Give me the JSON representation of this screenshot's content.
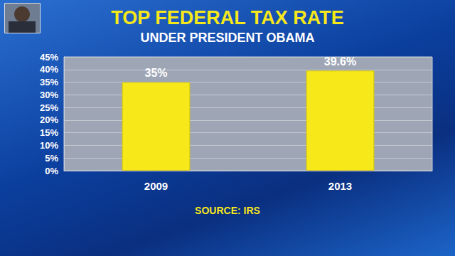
{
  "chart_data": {
    "type": "bar",
    "title": "TOP FEDERAL TAX RATE",
    "subtitle": "UNDER PRESIDENT OBAMA",
    "source": "SOURCE: IRS",
    "categories": [
      "2009",
      "2013"
    ],
    "values": [
      35,
      39.6
    ],
    "value_labels": [
      "35%",
      "39.6%"
    ],
    "color": "#f7e81a",
    "data_labels": true,
    "ylim": [
      0,
      45
    ],
    "yticks": [
      {
        "value": 0,
        "label": "0%"
      },
      {
        "value": 5,
        "label": "5%"
      },
      {
        "value": 10,
        "label": "10%"
      },
      {
        "value": 15,
        "label": "15%"
      },
      {
        "value": 20,
        "label": "20%"
      },
      {
        "value": 25,
        "label": "25%"
      },
      {
        "value": 30,
        "label": "30%"
      },
      {
        "value": 35,
        "label": "35%"
      },
      {
        "value": 40,
        "label": "40%"
      },
      {
        "value": 45,
        "label": "45%"
      }
    ],
    "grid": true
  }
}
